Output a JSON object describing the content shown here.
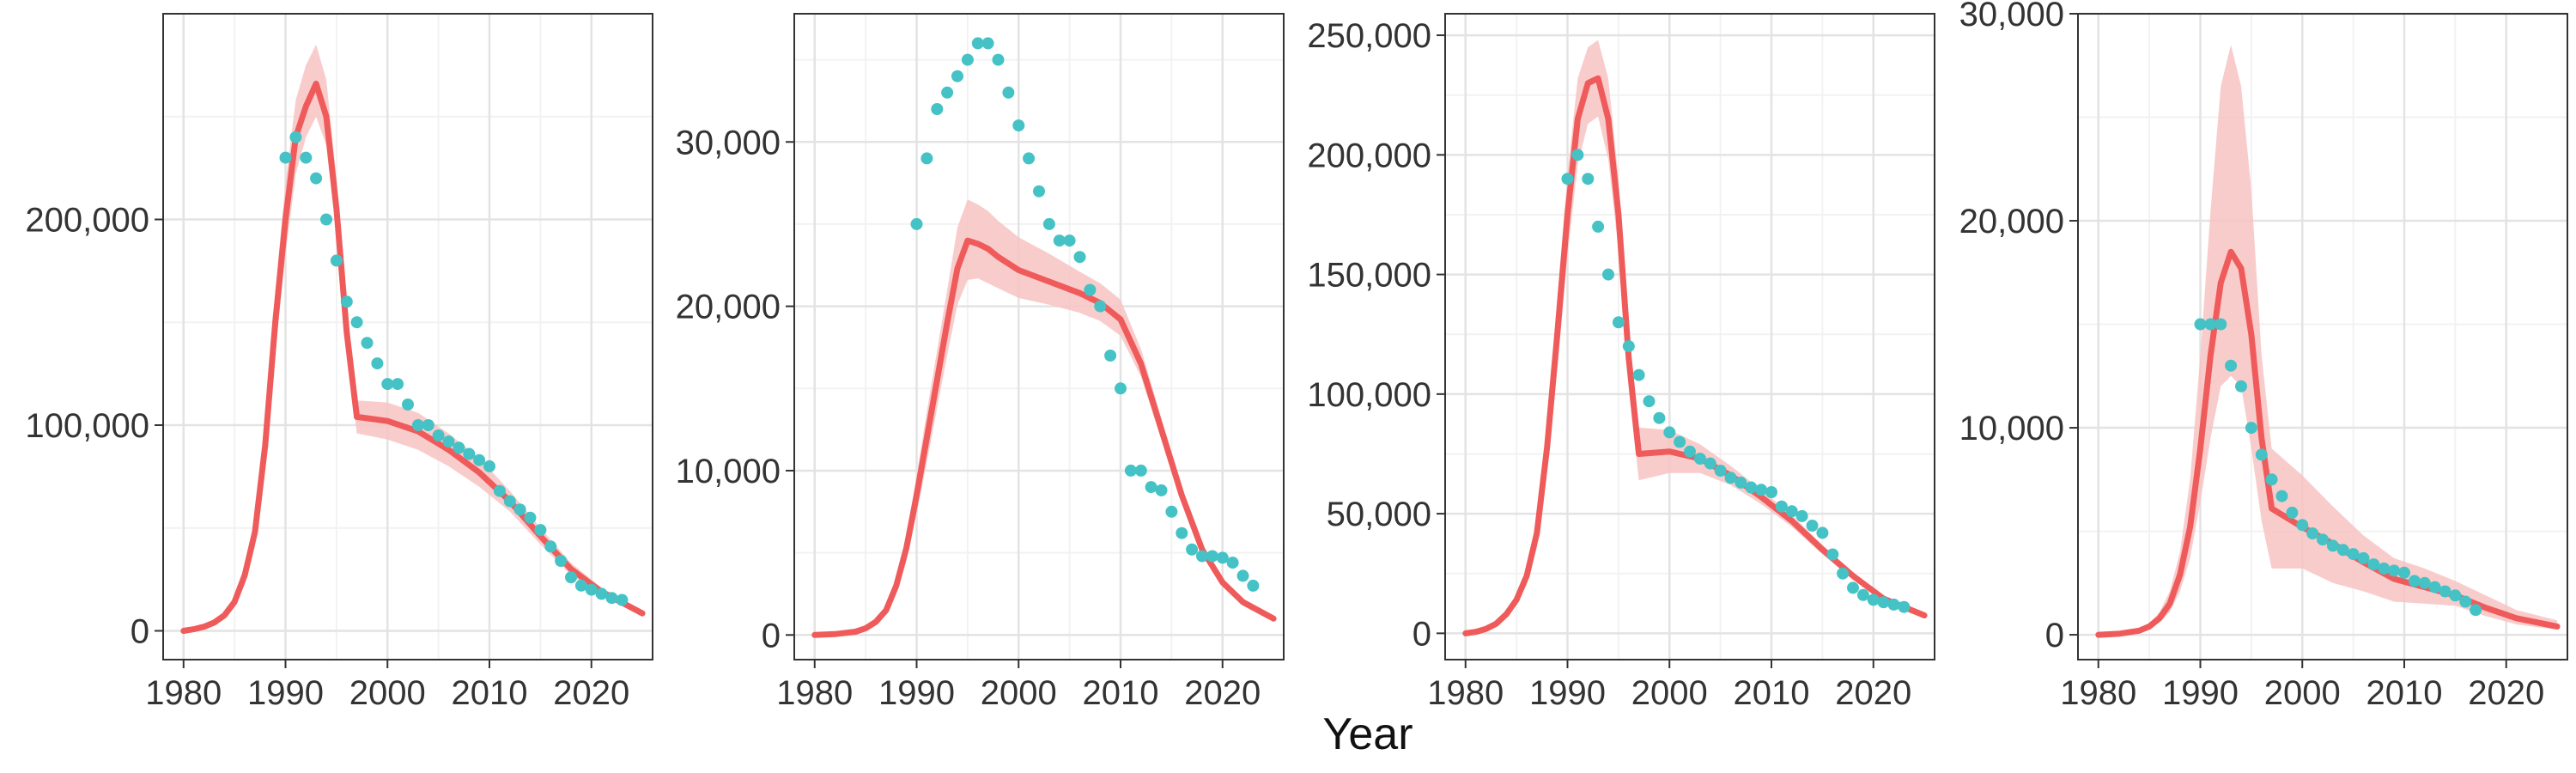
{
  "colors": {
    "model_line": "#ef5b5b",
    "model_band": "#f8c3c3",
    "observed_points": "#45c2c5",
    "grid_major": "#e3e3e3",
    "grid_minor": "#f2f2f2",
    "panel_border": "#333333"
  },
  "xlabel": "Year",
  "chart_data": [
    {
      "type": "line",
      "xlim": [
        1978,
        2026
      ],
      "ylim": [
        -14000,
        300000
      ],
      "x_ticks": [
        1980,
        1990,
        2000,
        2010,
        2020
      ],
      "x_tick_labels": [
        "1980",
        "1990",
        "2000",
        "2010",
        "2020"
      ],
      "y_ticks": [
        0,
        100000,
        200000
      ],
      "y_tick_labels": [
        "0",
        "100,000",
        "200,000"
      ],
      "grid": true,
      "series": [
        {
          "kind": "line_with_band",
          "x": [
            1980,
            1981,
            1982,
            1983,
            1984,
            1985,
            1986,
            1987,
            1988,
            1989,
            1990,
            1991,
            1992,
            1993,
            1994,
            1995,
            1996,
            1997,
            2000,
            2003,
            2006,
            2009,
            2012,
            2015,
            2018,
            2021,
            2025
          ],
          "y": [
            0,
            800,
            2000,
            4000,
            7500,
            14000,
            27000,
            48000,
            90000,
            150000,
            200000,
            240000,
            255000,
            266000,
            250000,
            205000,
            145000,
            104000,
            102000,
            97000,
            88000,
            77000,
            63000,
            46000,
            30000,
            19000,
            8500
          ],
          "lower": [
            0,
            600,
            1500,
            3200,
            6000,
            11500,
            22500,
            41000,
            79000,
            135000,
            183000,
            222000,
            240000,
            250000,
            236000,
            192000,
            135000,
            96000,
            93000,
            88000,
            80000,
            70000,
            58000,
            42000,
            27000,
            17000,
            7200
          ],
          "upper": [
            0,
            1000,
            2600,
            5000,
            9000,
            17000,
            32000,
            55000,
            102000,
            165000,
            218000,
            258000,
            275000,
            285000,
            268000,
            220000,
            155000,
            112000,
            111000,
            106000,
            96000,
            84000,
            68000,
            50000,
            33000,
            21000,
            9800
          ]
        },
        {
          "kind": "points",
          "x": [
            1990,
            1991,
            1992,
            1993,
            1994,
            1995,
            1996,
            1997,
            1998,
            1999,
            2000,
            2001,
            2002,
            2003,
            2004,
            2005,
            2006,
            2007,
            2008,
            2009,
            2010,
            2011,
            2012,
            2013,
            2014,
            2015,
            2016,
            2017,
            2018,
            2019,
            2020,
            2021,
            2022,
            2023
          ],
          "y": [
            230000,
            240000,
            230000,
            220000,
            200000,
            180000,
            160000,
            150000,
            140000,
            130000,
            120000,
            120000,
            110000,
            100000,
            100000,
            95000,
            92000,
            89000,
            86000,
            83000,
            80000,
            68000,
            63000,
            59000,
            55000,
            49000,
            41000,
            34000,
            26000,
            22000,
            20000,
            18000,
            16000,
            15000
          ]
        }
      ]
    },
    {
      "type": "line",
      "xlim": [
        1978,
        2026
      ],
      "ylim": [
        -1500,
        37800
      ],
      "x_ticks": [
        1980,
        1990,
        2000,
        2010,
        2020
      ],
      "x_tick_labels": [
        "1980",
        "1990",
        "2000",
        "2010",
        "2020"
      ],
      "y_ticks": [
        0,
        10000,
        20000,
        30000
      ],
      "y_tick_labels": [
        "0",
        "10,000",
        "20,000",
        "30,000"
      ],
      "grid": true,
      "series": [
        {
          "kind": "line_with_band",
          "x": [
            1980,
            1982,
            1984,
            1985,
            1986,
            1987,
            1988,
            1989,
            1990,
            1991,
            1992,
            1993,
            1994,
            1995,
            1996,
            1997,
            1998,
            2000,
            2003,
            2006,
            2008,
            2010,
            2012,
            2014,
            2016,
            2018,
            2020,
            2022,
            2025
          ],
          "y": [
            0,
            50,
            200,
            400,
            800,
            1500,
            3000,
            5300,
            8500,
            12000,
            15500,
            19000,
            22300,
            24000,
            23800,
            23500,
            23000,
            22200,
            21500,
            20800,
            20200,
            19200,
            16500,
            12500,
            8500,
            5200,
            3200,
            2000,
            1000
          ],
          "lower": [
            0,
            40,
            160,
            320,
            650,
            1250,
            2500,
            4500,
            7400,
            10500,
            13800,
            17000,
            20100,
            21600,
            21700,
            21400,
            21100,
            20500,
            20100,
            19600,
            19100,
            18200,
            15700,
            11900,
            8100,
            4900,
            3000,
            1850,
            900
          ],
          "upper": [
            0,
            60,
            240,
            480,
            950,
            1750,
            3500,
            6100,
            9700,
            13600,
            17300,
            21000,
            24800,
            26500,
            26200,
            25800,
            25200,
            24200,
            23200,
            22100,
            21400,
            20400,
            17400,
            13200,
            9000,
            5500,
            3400,
            2200,
            1100
          ]
        },
        {
          "kind": "points",
          "x": [
            1990,
            1991,
            1992,
            1993,
            1994,
            1995,
            1996,
            1997,
            1998,
            1999,
            2000,
            2001,
            2002,
            2003,
            2004,
            2005,
            2006,
            2007,
            2008,
            2009,
            2010,
            2011,
            2012,
            2013,
            2014,
            2015,
            2016,
            2017,
            2018,
            2019,
            2020,
            2021,
            2022,
            2023
          ],
          "y": [
            25000,
            29000,
            32000,
            33000,
            34000,
            35000,
            36000,
            36000,
            35000,
            33000,
            31000,
            29000,
            27000,
            25000,
            24000,
            24000,
            23000,
            21000,
            20000,
            17000,
            15000,
            10000,
            10000,
            9000,
            8800,
            7500,
            6200,
            5200,
            4800,
            4800,
            4700,
            4400,
            3600,
            3000
          ]
        }
      ]
    },
    {
      "type": "line",
      "xlim": [
        1978,
        2026
      ],
      "ylim": [
        -11000,
        259000
      ],
      "x_ticks": [
        1980,
        1990,
        2000,
        2010,
        2020
      ],
      "x_tick_labels": [
        "1980",
        "1990",
        "2000",
        "2010",
        "2020"
      ],
      "y_ticks": [
        0,
        50000,
        100000,
        150000,
        200000,
        250000
      ],
      "y_tick_labels": [
        "0",
        "50,000",
        "100,000",
        "150,000",
        "200,000",
        "250,000"
      ],
      "grid": true,
      "series": [
        {
          "kind": "line_with_band",
          "x": [
            1980,
            1981,
            1982,
            1983,
            1984,
            1985,
            1986,
            1987,
            1988,
            1989,
            1990,
            1991,
            1992,
            1993,
            1994,
            1995,
            1996,
            1997,
            2000,
            2003,
            2006,
            2009,
            2012,
            2015,
            2018,
            2021,
            2025
          ],
          "y": [
            0,
            600,
            1800,
            4000,
            8000,
            14000,
            24000,
            42000,
            78000,
            125000,
            175000,
            215000,
            230000,
            232000,
            215000,
            175000,
            115000,
            75000,
            76000,
            73000,
            66000,
            57000,
            47000,
            35000,
            24000,
            14500,
            7500
          ],
          "lower": [
            0,
            480,
            1500,
            3300,
            6600,
            11800,
            20500,
            36000,
            68000,
            110000,
            158000,
            196000,
            213000,
            216000,
            198000,
            160000,
            102000,
            64000,
            67000,
            67000,
            62000,
            54000,
            44500,
            33000,
            22500,
            13500,
            6800
          ],
          "upper": [
            0,
            720,
            2100,
            4700,
            9400,
            16200,
            27500,
            48000,
            88000,
            140000,
            192000,
            232000,
            245000,
            248000,
            232000,
            190000,
            128000,
            86000,
            85000,
            79000,
            70000,
            60000,
            49500,
            37000,
            25500,
            15500,
            8200
          ]
        },
        {
          "kind": "points",
          "x": [
            1990,
            1991,
            1992,
            1993,
            1994,
            1995,
            1996,
            1997,
            1998,
            1999,
            2000,
            2001,
            2002,
            2003,
            2004,
            2005,
            2006,
            2007,
            2008,
            2009,
            2010,
            2011,
            2012,
            2013,
            2014,
            2015,
            2016,
            2017,
            2018,
            2019,
            2020,
            2021,
            2022,
            2023
          ],
          "y": [
            190000,
            200000,
            190000,
            170000,
            150000,
            130000,
            120000,
            108000,
            97000,
            90000,
            84000,
            80000,
            76000,
            73000,
            71000,
            68000,
            65000,
            63000,
            61000,
            60000,
            59000,
            53000,
            51000,
            49000,
            45000,
            42000,
            33000,
            25000,
            19000,
            16000,
            14000,
            13000,
            12000,
            11000
          ]
        }
      ]
    },
    {
      "type": "line",
      "xlim": [
        1978,
        2026
      ],
      "ylim": [
        -1200,
        30000
      ],
      "x_ticks": [
        1980,
        1990,
        2000,
        2010,
        2020
      ],
      "x_tick_labels": [
        "1980",
        "1990",
        "2000",
        "2010",
        "2020"
      ],
      "y_ticks": [
        0,
        10000,
        20000,
        30000
      ],
      "y_tick_labels": [
        "0",
        "10,000",
        "20,000",
        "30,000"
      ],
      "grid": true,
      "series": [
        {
          "kind": "line_with_band",
          "x": [
            1980,
            1982,
            1984,
            1985,
            1986,
            1987,
            1988,
            1989,
            1990,
            1991,
            1992,
            1993,
            1994,
            1995,
            1996,
            1997,
            2000,
            2003,
            2006,
            2009,
            2012,
            2015,
            2018,
            2021,
            2025
          ],
          "y": [
            0,
            50,
            200,
            400,
            800,
            1500,
            2900,
            5200,
            9000,
            13500,
            17000,
            18500,
            17700,
            14500,
            9500,
            6100,
            5200,
            4400,
            3500,
            2700,
            2300,
            1900,
            1300,
            800,
            400
          ],
          "lower": [
            0,
            40,
            150,
            300,
            600,
            1100,
            2100,
            3700,
            6400,
            9500,
            12000,
            12500,
            12000,
            9000,
            5500,
            3200,
            3200,
            2500,
            2100,
            1600,
            1500,
            1400,
            900,
            500,
            250
          ],
          "upper": [
            0,
            60,
            260,
            550,
            1100,
            2100,
            4000,
            7500,
            13500,
            20500,
            26500,
            28500,
            26500,
            21500,
            13500,
            9000,
            7700,
            6200,
            4800,
            3700,
            3200,
            2600,
            1900,
            1200,
            700
          ]
        },
        {
          "kind": "points",
          "x": [
            1990,
            1991,
            1992,
            1993,
            1994,
            1995,
            1996,
            1997,
            1998,
            1999,
            2000,
            2001,
            2002,
            2003,
            2004,
            2005,
            2006,
            2007,
            2008,
            2009,
            2010,
            2011,
            2012,
            2013,
            2014,
            2015,
            2016,
            2017
          ],
          "y": [
            15000,
            15000,
            15000,
            13000,
            12000,
            10000,
            8700,
            7500,
            6700,
            5900,
            5300,
            4900,
            4600,
            4300,
            4100,
            3900,
            3700,
            3400,
            3200,
            3100,
            3000,
            2600,
            2500,
            2300,
            2100,
            1900,
            1600,
            1200
          ]
        }
      ]
    }
  ]
}
